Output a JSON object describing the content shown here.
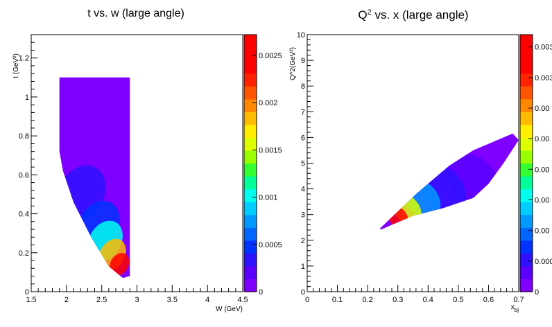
{
  "chart_data": [
    {
      "type": "heatmap",
      "title": "t vs. w (large angle)",
      "xlabel": "W (GeV)",
      "ylabel": "t (GeV²)",
      "xlim": [
        1.5,
        4.5
      ],
      "ylim": [
        0,
        1.32
      ],
      "x_ticks": [
        "1.5",
        "2",
        "2.5",
        "3",
        "3.5",
        "4",
        "4.5"
      ],
      "y_ticks": [
        "0",
        "0.2",
        "0.4",
        "0.6",
        "0.8",
        "1",
        "1.2"
      ],
      "colorbar": {
        "range": [
          0,
          0.00272
        ],
        "ticks": [
          "0",
          "0.0005",
          "0.001",
          "0.0015",
          "0.002",
          "0.0025"
        ]
      },
      "region": {
        "description": "populated band",
        "boundary": [
          [
            1.9,
            1.1
          ],
          [
            2.9,
            1.1
          ],
          [
            2.9,
            0.08
          ],
          [
            2.8,
            0.07
          ],
          [
            2.6,
            0.13
          ],
          [
            2.35,
            0.28
          ],
          [
            2.1,
            0.46
          ],
          [
            1.95,
            0.62
          ],
          [
            1.9,
            0.72
          ]
        ]
      },
      "hotspots": [
        {
          "x": 2.75,
          "y": 0.14,
          "value": 0.0026
        },
        {
          "x": 2.65,
          "y": 0.19,
          "value": 0.0018
        },
        {
          "x": 2.55,
          "y": 0.26,
          "value": 0.001
        },
        {
          "x": 2.45,
          "y": 0.34,
          "value": 0.0005
        },
        {
          "x": 2.2,
          "y": 0.5,
          "value": 0.0003
        }
      ]
    },
    {
      "type": "heatmap",
      "title": "Q² vs. x (large angle)",
      "xlabel": "x_bj",
      "ylabel": "Q^2(GeV²)",
      "xlim": [
        0,
        0.7
      ],
      "ylim": [
        0,
        10
      ],
      "x_ticks": [
        "0",
        "0.1",
        "0.2",
        "0.3",
        "0.4",
        "0.5",
        "0.6",
        "0.7"
      ],
      "y_ticks": [
        "0",
        "1",
        "2",
        "3",
        "4",
        "5",
        "6",
        "7",
        "8",
        "9",
        "10"
      ],
      "colorbar": {
        "range": [
          0,
          0.0042
        ],
        "ticks": [
          "0",
          "0.000",
          "0.00",
          "0.00",
          "0.00",
          "0.00",
          "0.00",
          "0.003",
          "0.003"
        ]
      },
      "region": {
        "description": "populated band",
        "boundary": [
          [
            0.24,
            2.45
          ],
          [
            0.36,
            3.8
          ],
          [
            0.47,
            4.9
          ],
          [
            0.55,
            5.5
          ],
          [
            0.61,
            5.8
          ],
          [
            0.68,
            6.15
          ],
          [
            0.7,
            5.9
          ],
          [
            0.65,
            5.0
          ],
          [
            0.6,
            4.2
          ],
          [
            0.55,
            3.65
          ],
          [
            0.45,
            3.25
          ],
          [
            0.35,
            2.95
          ],
          [
            0.28,
            2.6
          ],
          [
            0.245,
            2.42
          ]
        ]
      },
      "hotspots": [
        {
          "x": 0.3,
          "y": 2.9,
          "value": 0.0038
        },
        {
          "x": 0.33,
          "y": 3.2,
          "value": 0.0025
        },
        {
          "x": 0.38,
          "y": 3.6,
          "value": 0.0012
        },
        {
          "x": 0.45,
          "y": 4.0,
          "value": 0.0006
        },
        {
          "x": 0.55,
          "y": 4.3,
          "value": 0.0004
        }
      ]
    }
  ]
}
